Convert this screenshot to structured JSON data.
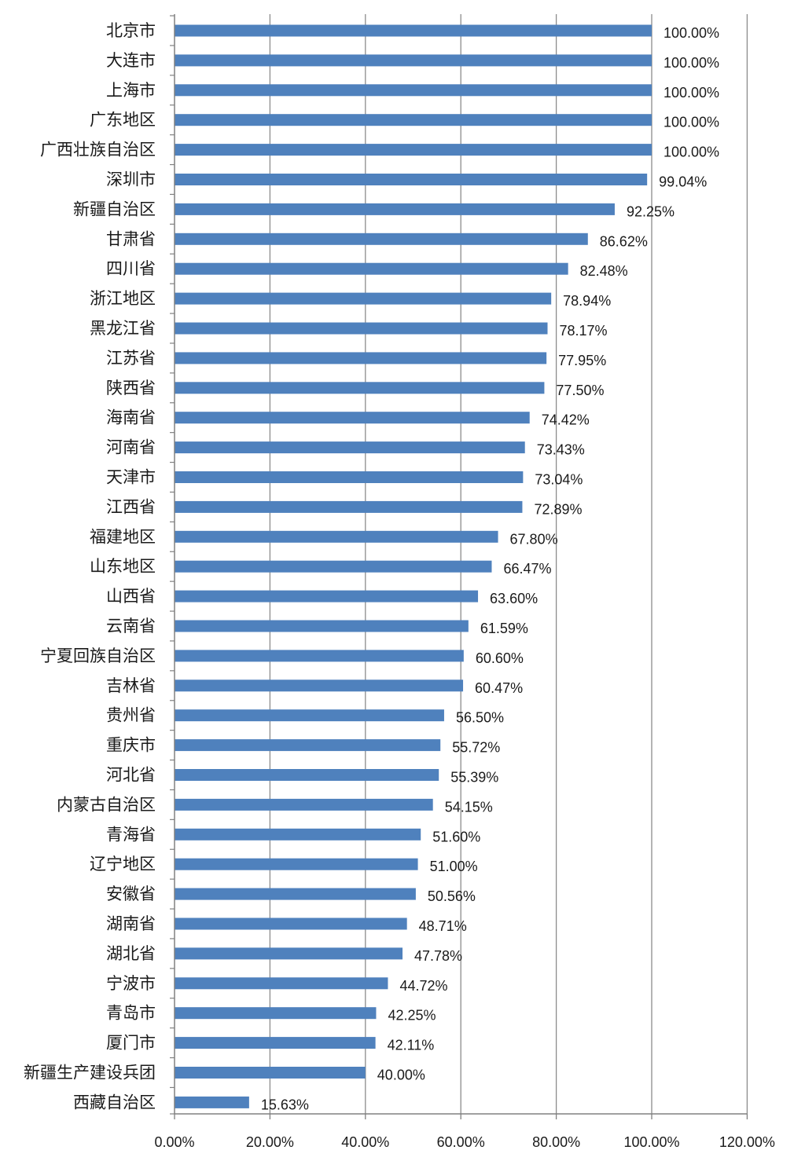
{
  "colors": {
    "bar": "#4F81BD",
    "grid": "#8C8C8C",
    "axis": "#808080",
    "text": "#1a1a1a"
  },
  "chart_data": {
    "type": "bar",
    "orientation": "horizontal",
    "title": "",
    "xlabel": "",
    "ylabel": "",
    "xlim": [
      0,
      120
    ],
    "x_ticks": [
      "0.00%",
      "20.00%",
      "40.00%",
      "60.00%",
      "80.00%",
      "100.00%",
      "120.00%"
    ],
    "grid": "vertical-major",
    "legend": "none",
    "categories": [
      "北京市",
      "大连市",
      "上海市",
      "广东地区",
      "广西壮族自治区",
      "深圳市",
      "新疆自治区",
      "甘肃省",
      "四川省",
      "浙江地区",
      "黑龙江省",
      "江苏省",
      "陕西省",
      "海南省",
      "河南省",
      "天津市",
      "江西省",
      "福建地区",
      "山东地区",
      "山西省",
      "云南省",
      "宁夏回族自治区",
      "吉林省",
      "贵州省",
      "重庆市",
      "河北省",
      "内蒙古自治区",
      "青海省",
      "辽宁地区",
      "安徽省",
      "湖南省",
      "湖北省",
      "宁波市",
      "青岛市",
      "厦门市",
      "新疆生产建设兵团",
      "西藏自治区"
    ],
    "values": [
      100.0,
      100.0,
      100.0,
      100.0,
      100.0,
      99.04,
      92.25,
      86.62,
      82.48,
      78.94,
      78.17,
      77.95,
      77.5,
      74.42,
      73.43,
      73.04,
      72.89,
      67.8,
      66.47,
      63.6,
      61.59,
      60.6,
      60.47,
      56.5,
      55.72,
      55.39,
      54.15,
      51.6,
      51.0,
      50.56,
      48.71,
      47.78,
      44.72,
      42.25,
      42.11,
      40.0,
      15.63
    ],
    "data_labels": [
      "100.00%",
      "100.00%",
      "100.00%",
      "100.00%",
      "100.00%",
      "99.04%",
      "92.25%",
      "86.62%",
      "82.48%",
      "78.94%",
      "78.17%",
      "77.95%",
      "77.50%",
      "74.42%",
      "73.43%",
      "73.04%",
      "72.89%",
      "67.80%",
      "66.47%",
      "63.60%",
      "61.59%",
      "60.60%",
      "60.47%",
      "56.50%",
      "55.72%",
      "55.39%",
      "54.15%",
      "51.60%",
      "51.00%",
      "50.56%",
      "48.71%",
      "47.78%",
      "44.72%",
      "42.25%",
      "42.11%",
      "40.00%",
      "15.63%"
    ]
  }
}
